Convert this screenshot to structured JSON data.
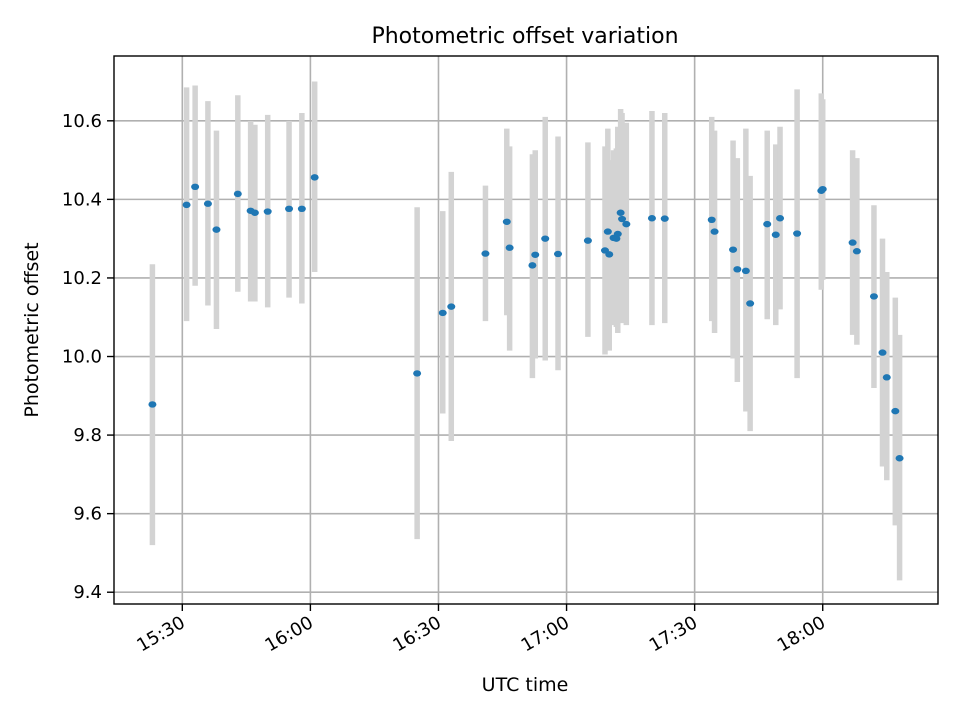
{
  "chart_data": {
    "type": "scatter",
    "title": "Photometric offset variation",
    "xlabel": "UTC time",
    "ylabel": "Photometric offset",
    "x_unit": "UTC time of day (HH:MM)",
    "xlim": [
      "15:14",
      "18:27"
    ],
    "ylim": [
      9.37,
      10.765
    ],
    "xticks": [
      "15:30",
      "16:00",
      "16:30",
      "17:00",
      "17:30",
      "18:00"
    ],
    "xtick_rotation": 30,
    "yticks": [
      9.4,
      9.6,
      9.8,
      10.0,
      10.2,
      10.4,
      10.6
    ],
    "ytick_labels": [
      "9.4",
      "9.6",
      "9.8",
      "10.0",
      "10.2",
      "10.4",
      "10.6"
    ],
    "grid": true,
    "legend": "none",
    "colors": {
      "marker": "#1f77b4",
      "errorbar": "#d3d3d3"
    },
    "series": [
      {
        "points": [
          {
            "x": "15:23",
            "y": 9.878,
            "lo": 9.52,
            "hi": 10.235
          },
          {
            "x": "15:31",
            "y": 10.386,
            "lo": 10.09,
            "hi": 10.685
          },
          {
            "x": "15:33",
            "y": 10.432,
            "lo": 10.18,
            "hi": 10.69
          },
          {
            "x": "15:36",
            "y": 10.389,
            "lo": 10.13,
            "hi": 10.65
          },
          {
            "x": "15:38",
            "y": 10.323,
            "lo": 10.07,
            "hi": 10.575
          },
          {
            "x": "15:43",
            "y": 10.414,
            "lo": 10.165,
            "hi": 10.665
          },
          {
            "x": "15:46",
            "y": 10.371,
            "lo": 10.14,
            "hi": 10.6
          },
          {
            "x": "15:47",
            "y": 10.366,
            "lo": 10.14,
            "hi": 10.59
          },
          {
            "x": "15:50",
            "y": 10.369,
            "lo": 10.125,
            "hi": 10.615
          },
          {
            "x": "15:55",
            "y": 10.376,
            "lo": 10.15,
            "hi": 10.6
          },
          {
            "x": "15:58",
            "y": 10.376,
            "lo": 10.135,
            "hi": 10.62
          },
          {
            "x": "16:01",
            "y": 10.456,
            "lo": 10.215,
            "hi": 10.7
          },
          {
            "x": "16:25",
            "y": 9.957,
            "lo": 9.535,
            "hi": 10.38
          },
          {
            "x": "16:31",
            "y": 10.111,
            "lo": 9.855,
            "hi": 10.37
          },
          {
            "x": "16:33",
            "y": 10.127,
            "lo": 9.785,
            "hi": 10.47
          },
          {
            "x": "16:41",
            "y": 10.262,
            "lo": 10.09,
            "hi": 10.435
          },
          {
            "x": "16:46",
            "y": 10.343,
            "lo": 10.105,
            "hi": 10.58
          },
          {
            "x": "16:46:40",
            "y": 10.277,
            "lo": 10.015,
            "hi": 10.535
          },
          {
            "x": "16:52",
            "y": 10.232,
            "lo": 9.945,
            "hi": 10.515
          },
          {
            "x": "16:52:40",
            "y": 10.259,
            "lo": 9.995,
            "hi": 10.525
          },
          {
            "x": "16:55",
            "y": 10.3,
            "lo": 9.99,
            "hi": 10.61
          },
          {
            "x": "16:58",
            "y": 10.261,
            "lo": 9.965,
            "hi": 10.56
          },
          {
            "x": "17:05",
            "y": 10.295,
            "lo": 10.05,
            "hi": 10.545
          },
          {
            "x": "17:09",
            "y": 10.27,
            "lo": 10.005,
            "hi": 10.535
          },
          {
            "x": "17:09:40",
            "y": 10.318,
            "lo": 10.055,
            "hi": 10.58
          },
          {
            "x": "17:10",
            "y": 10.26,
            "lo": 10.015,
            "hi": 10.5
          },
          {
            "x": "17:11",
            "y": 10.302,
            "lo": 10.08,
            "hi": 10.525
          },
          {
            "x": "17:11:40",
            "y": 10.3,
            "lo": 10.075,
            "hi": 10.53
          },
          {
            "x": "17:12",
            "y": 10.312,
            "lo": 10.06,
            "hi": 10.585
          },
          {
            "x": "17:12:40",
            "y": 10.366,
            "lo": 10.1,
            "hi": 10.63
          },
          {
            "x": "17:13",
            "y": 10.35,
            "lo": 10.085,
            "hi": 10.62
          },
          {
            "x": "17:14",
            "y": 10.337,
            "lo": 10.08,
            "hi": 10.595
          },
          {
            "x": "17:20",
            "y": 10.352,
            "lo": 10.08,
            "hi": 10.625
          },
          {
            "x": "17:23",
            "y": 10.351,
            "lo": 10.085,
            "hi": 10.62
          },
          {
            "x": "17:34",
            "y": 10.348,
            "lo": 10.09,
            "hi": 10.61
          },
          {
            "x": "17:34:40",
            "y": 10.318,
            "lo": 10.06,
            "hi": 10.575
          },
          {
            "x": "17:39",
            "y": 10.272,
            "lo": 9.995,
            "hi": 10.55
          },
          {
            "x": "17:40",
            "y": 10.222,
            "lo": 9.935,
            "hi": 10.505
          },
          {
            "x": "17:42",
            "y": 10.218,
            "lo": 9.86,
            "hi": 10.58
          },
          {
            "x": "17:43",
            "y": 10.135,
            "lo": 9.81,
            "hi": 10.46
          },
          {
            "x": "17:47",
            "y": 10.337,
            "lo": 10.095,
            "hi": 10.575
          },
          {
            "x": "17:49",
            "y": 10.31,
            "lo": 10.08,
            "hi": 10.54
          },
          {
            "x": "17:50",
            "y": 10.352,
            "lo": 10.12,
            "hi": 10.585
          },
          {
            "x": "17:54",
            "y": 10.313,
            "lo": 9.945,
            "hi": 10.68
          },
          {
            "x": "17:59:40",
            "y": 10.422,
            "lo": 10.17,
            "hi": 10.67
          },
          {
            "x": "18:00",
            "y": 10.426,
            "lo": 10.195,
            "hi": 10.655
          },
          {
            "x": "18:07",
            "y": 10.29,
            "lo": 10.055,
            "hi": 10.525
          },
          {
            "x": "18:08",
            "y": 10.268,
            "lo": 10.03,
            "hi": 10.505
          },
          {
            "x": "18:12",
            "y": 10.153,
            "lo": 9.92,
            "hi": 10.385
          },
          {
            "x": "18:14",
            "y": 10.01,
            "lo": 9.72,
            "hi": 10.3
          },
          {
            "x": "18:15",
            "y": 9.947,
            "lo": 9.685,
            "hi": 10.215
          },
          {
            "x": "18:17",
            "y": 9.861,
            "lo": 9.57,
            "hi": 10.15
          },
          {
            "x": "18:18",
            "y": 9.741,
            "lo": 9.43,
            "hi": 10.055
          }
        ]
      }
    ]
  }
}
